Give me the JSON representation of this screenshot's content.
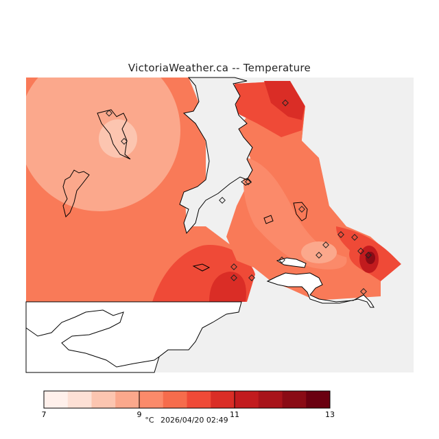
{
  "title": "VictoriaWeather.ca -- Temperature",
  "colorbar": {
    "unit": "°C",
    "timestamp": "2026/04/20 02:49",
    "tick_labels": [
      "7",
      "9",
      "11",
      "13"
    ],
    "levels": [
      7,
      7.5,
      8,
      8.5,
      9,
      9.5,
      10,
      10.5,
      11,
      11.5,
      12,
      12.5,
      13
    ],
    "colors": [
      "#fff0eb",
      "#fde0d5",
      "#fcc5b0",
      "#fba88c",
      "#fb8a6a",
      "#f66c4c",
      "#ef4a37",
      "#da2d26",
      "#c21b1e",
      "#a8131a",
      "#8a0b15",
      "#6a0010"
    ]
  },
  "map": {
    "land_color": "#f0f0f0",
    "water_color": "#ffffff",
    "station_count": 17
  }
}
